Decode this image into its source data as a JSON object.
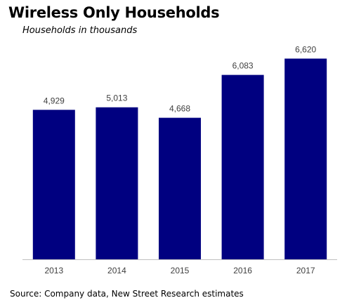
{
  "chart_data": {
    "type": "bar",
    "title": "Wireless Only Households",
    "subtitle": "Households in thousands",
    "categories": [
      "2013",
      "2014",
      "2015",
      "2016",
      "2017"
    ],
    "values": [
      4929,
      5013,
      4668,
      6083,
      6620
    ],
    "value_labels": [
      "4,929",
      "5,013",
      "4,668",
      "6,083",
      "6,620"
    ],
    "xlabel": "",
    "ylabel": "",
    "ylim": [
      0,
      7000
    ],
    "grid": false,
    "legend": "none",
    "bar_color": "#000080",
    "axis_color": "#bfbfbf",
    "label_color": "#404040"
  },
  "source": "Source: Company data, New Street Research estimates"
}
